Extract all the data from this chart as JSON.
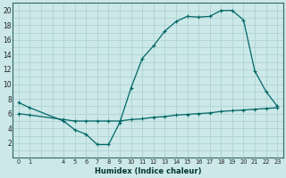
{
  "xlabel": "Humidex (Indice chaleur)",
  "bg_color": "#cce8e8",
  "grid_color": "#aacfcf",
  "line_color": "#006666",
  "xlim": [
    -0.5,
    23.5
  ],
  "ylim": [
    0,
    21
  ],
  "ytick_vals": [
    2,
    4,
    6,
    8,
    10,
    12,
    14,
    16,
    18,
    20
  ],
  "xtick_positions": [
    0,
    1,
    4,
    5,
    6,
    7,
    8,
    9,
    10,
    11,
    12,
    13,
    14,
    15,
    16,
    17,
    18,
    19,
    20,
    21,
    22,
    23
  ],
  "curve1_x": [
    0,
    1,
    4,
    5,
    6,
    7,
    8,
    9,
    10,
    11,
    12,
    13,
    14,
    15,
    16,
    17,
    18,
    19,
    20,
    21,
    22,
    23
  ],
  "curve1_y": [
    7.5,
    6.8,
    5.0,
    3.8,
    3.2,
    1.8,
    1.8,
    4.8,
    9.5,
    13.5,
    15.2,
    17.2,
    18.5,
    19.2,
    19.1,
    19.2,
    20.0,
    20.0,
    18.7,
    11.8,
    9.0,
    7.0
  ],
  "curve2_x": [
    0,
    1,
    4,
    5,
    6,
    7,
    8,
    9,
    10,
    11,
    12,
    13,
    14,
    15,
    16,
    17,
    18,
    19,
    20,
    21,
    22,
    23
  ],
  "curve2_y": [
    6.0,
    5.8,
    5.2,
    5.0,
    5.0,
    5.0,
    5.0,
    5.0,
    5.2,
    5.3,
    5.5,
    5.6,
    5.8,
    5.9,
    6.0,
    6.1,
    6.3,
    6.4,
    6.5,
    6.6,
    6.7,
    6.8
  ]
}
